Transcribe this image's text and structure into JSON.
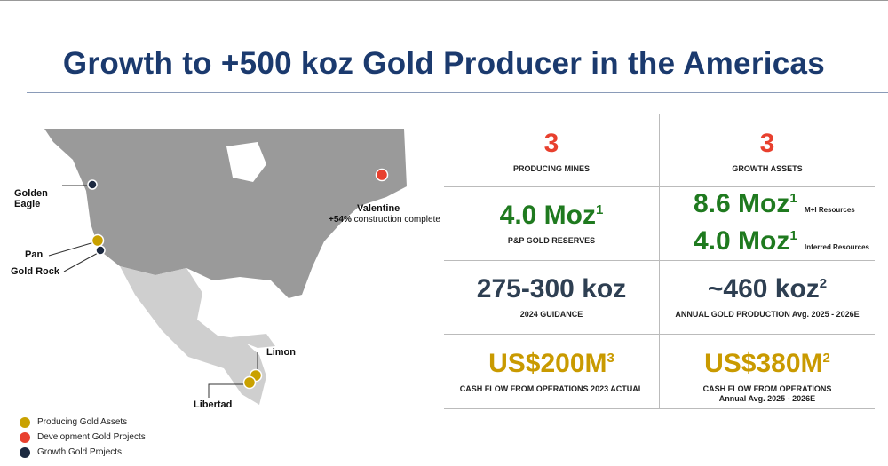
{
  "title": "Growth to +500 koz Gold Producer in the Americas",
  "map": {
    "labels": {
      "golden_eagle": "Golden Eagle",
      "pan": "Pan",
      "gold_rock": "Gold Rock",
      "valentine": "Valentine",
      "valentine_progress": "+54%",
      "valentine_note": "construction complete",
      "limon": "Limon",
      "libertad": "Libertad"
    },
    "legend": [
      "Producing Gold Assets",
      "Development Gold Projects",
      "Growth Gold Projects"
    ]
  },
  "stats": {
    "producing_mines": {
      "value": "3",
      "label": "PRODUCING MINES"
    },
    "growth_assets": {
      "value": "3",
      "label": "GROWTH ASSETS"
    },
    "reserves": {
      "value": "4.0 Moz",
      "note": "1",
      "label": "P&P GOLD RESERVES"
    },
    "mi_resources": {
      "value": "8.6 Moz",
      "note": "1",
      "label": "M+I Resources"
    },
    "inferred_resources": {
      "value": "4.0 Moz",
      "note": "1",
      "label": "Inferred Resources"
    },
    "guidance": {
      "value": "275-300 koz",
      "label": "2024 GUIDANCE"
    },
    "production": {
      "value": "~460 koz",
      "note": "2",
      "label": "ANNUAL GOLD PRODUCTION Avg. 2025 - 2026E"
    },
    "cash_flow_actual": {
      "value": "US$200M",
      "note": "3",
      "label": "CASH FLOW FROM OPERATIONS 2023 ACTUAL"
    },
    "cash_flow_future": {
      "value": "US$380M",
      "note": "2",
      "label": "CASH FLOW FROM OPERATIONS",
      "sublabel": "Annual Avg. 2025 - 2026E"
    }
  }
}
